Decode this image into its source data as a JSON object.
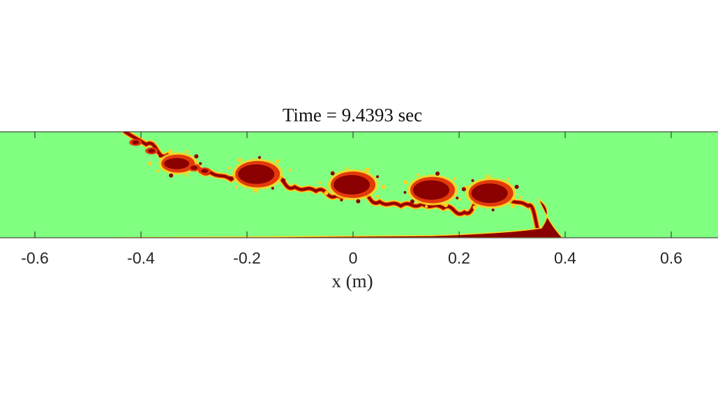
{
  "chart_data": {
    "type": "heatmap",
    "title": "Time = 9.4393 sec",
    "xlabel": "x (m)",
    "ylabel": "",
    "xlim": [
      -0.67,
      0.67
    ],
    "xticks": [
      -0.6,
      -0.4,
      -0.2,
      0,
      0.2,
      0.4,
      0.6
    ],
    "xtick_labels": [
      "-0.6",
      "-0.4",
      "-0.2",
      "0",
      "0.2",
      "0.4",
      "0.6"
    ],
    "yticks_visible": false,
    "colors": {
      "background_field": "#80ff80",
      "mixing_high": "#8b0000",
      "mixing_mid": "#e23a0a",
      "mixing_low": "#ffd21e",
      "axis": "#262626"
    },
    "interface": {
      "description_points_x": [
        -0.43,
        -0.39,
        -0.35,
        -0.31,
        -0.27,
        -0.23,
        -0.19,
        -0.15,
        -0.11,
        -0.07,
        -0.03,
        0.01,
        0.05,
        0.09,
        0.13,
        0.17,
        0.21,
        0.25,
        0.29,
        0.33,
        0.36
      ],
      "description_points_level": [
        1.0,
        0.88,
        0.78,
        0.68,
        0.62,
        0.55,
        0.6,
        0.56,
        0.48,
        0.44,
        0.4,
        0.42,
        0.34,
        0.3,
        0.32,
        0.28,
        0.24,
        0.42,
        0.37,
        0.3,
        0.0
      ],
      "eddy_centers_x": [
        -0.33,
        -0.18,
        0.0,
        0.15,
        0.26
      ],
      "eddy_centers_level": [
        0.7,
        0.6,
        0.5,
        0.45,
        0.42
      ],
      "bottom_current_x": [
        -0.45,
        0.4
      ]
    }
  }
}
